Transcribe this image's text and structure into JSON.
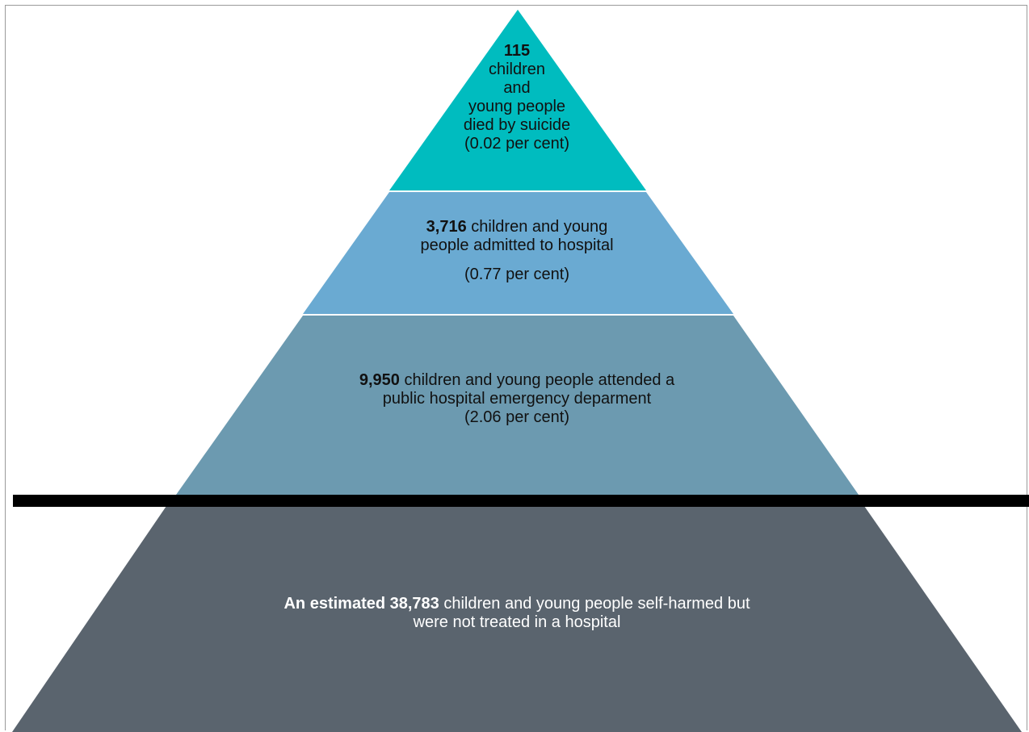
{
  "colors": {
    "tier_top": "#00bcbf",
    "tier_2": "#6aaad2",
    "tier_3": "#6c9ab0",
    "base": "#5a646e",
    "divider": "#000000",
    "separator": "#ffffff"
  },
  "tiers": {
    "top": {
      "number": "115",
      "lines": [
        "children",
        "and",
        "young people",
        "died by suicide",
        "(0.02 per cent)"
      ]
    },
    "tier2": {
      "number": "3,716",
      "text_line1": " children and young",
      "text_line2": "people admitted to hospital",
      "percent": "(0.77 per cent)"
    },
    "tier3": {
      "number": "9,950",
      "text_line1": " children and young people attended a",
      "text_line2": "public hospital emergency deparment",
      "percent": "(2.06 per cent)"
    },
    "base": {
      "bold_prefix": "An estimated 38,783",
      "text_line1": " children and young people self-harmed but",
      "text_line2": "were not treated in a hospital"
    }
  }
}
